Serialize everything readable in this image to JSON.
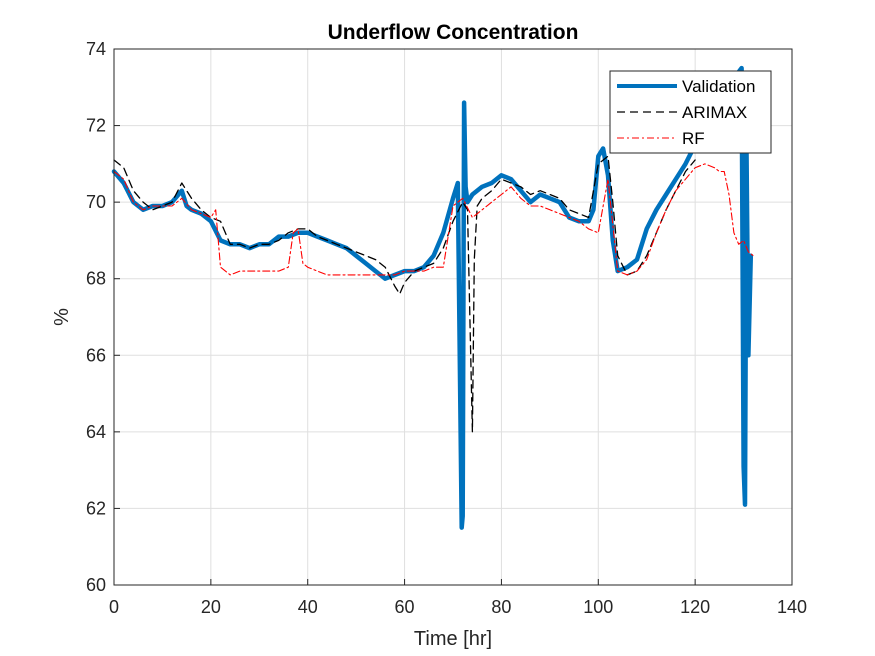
{
  "chart_data": {
    "type": "line",
    "title": "Underflow Concentration",
    "xlabel": "Time [hr]",
    "ylabel": "%",
    "xlim": [
      0,
      140
    ],
    "ylim": [
      60,
      74
    ],
    "xticks": [
      0,
      20,
      40,
      60,
      80,
      100,
      120,
      140
    ],
    "yticks": [
      60,
      62,
      64,
      66,
      68,
      70,
      72,
      74
    ],
    "grid": true,
    "legend_position": "top-right",
    "series": [
      {
        "name": "Validation",
        "color": "#0072BD",
        "style": "solid-thick",
        "x": [
          0,
          2,
          4,
          6,
          8,
          10,
          12,
          14,
          15,
          16,
          18,
          20,
          22,
          24,
          26,
          28,
          30,
          32,
          34,
          36,
          38,
          40,
          42,
          44,
          46,
          48,
          50,
          52,
          54,
          56,
          58,
          60,
          62,
          64,
          66,
          68,
          70,
          71,
          71.8,
          72,
          72.3,
          72.6,
          73,
          74,
          76,
          78,
          80,
          82,
          84,
          86,
          88,
          90,
          92,
          94,
          96,
          98,
          99,
          100,
          101,
          102,
          103,
          104,
          106,
          108,
          110,
          112,
          114,
          116,
          118,
          120,
          122,
          124,
          126,
          128,
          129,
          129.6,
          130,
          130.3,
          130.6,
          131,
          131.5
        ],
        "y": [
          70.8,
          70.5,
          70.0,
          69.8,
          69.9,
          69.9,
          70.0,
          70.3,
          69.9,
          69.8,
          69.7,
          69.5,
          69.0,
          68.9,
          68.9,
          68.8,
          68.9,
          68.9,
          69.1,
          69.1,
          69.2,
          69.2,
          69.1,
          69.0,
          68.9,
          68.8,
          68.6,
          68.4,
          68.2,
          68.0,
          68.1,
          68.2,
          68.2,
          68.3,
          68.6,
          69.2,
          70.1,
          70.5,
          61.5,
          61.8,
          72.6,
          70.4,
          70.0,
          70.2,
          70.4,
          70.5,
          70.7,
          70.6,
          70.3,
          70.0,
          70.2,
          70.1,
          70.0,
          69.6,
          69.5,
          69.5,
          69.8,
          71.2,
          71.4,
          70.7,
          69.0,
          68.2,
          68.3,
          68.5,
          69.3,
          69.8,
          70.2,
          70.6,
          71.0,
          71.5,
          72.0,
          72.6,
          73.0,
          73.3,
          73.4,
          73.5,
          63.1,
          62.1,
          71.4,
          66.0,
          68.6
        ]
      },
      {
        "name": "ARIMAX",
        "color": "#000000",
        "style": "dashed",
        "x": [
          0,
          2,
          4,
          6,
          8,
          10,
          12,
          14,
          16,
          18,
          20,
          22,
          24,
          26,
          28,
          30,
          32,
          34,
          36,
          38,
          40,
          42,
          44,
          46,
          48,
          50,
          52,
          54,
          56,
          58,
          59,
          60,
          62,
          64,
          66,
          68,
          70,
          72,
          73,
          74,
          74.4,
          75,
          76,
          78,
          80,
          82,
          84,
          86,
          88,
          90,
          92,
          94,
          96,
          98,
          100,
          102,
          103,
          104,
          106,
          108,
          110,
          112,
          114,
          116,
          118,
          120
        ],
        "y": [
          71.1,
          70.9,
          70.3,
          70.0,
          69.8,
          69.9,
          70.0,
          70.5,
          70.1,
          69.8,
          69.6,
          69.5,
          68.9,
          68.9,
          68.8,
          68.9,
          68.9,
          69.0,
          69.2,
          69.3,
          69.3,
          69.1,
          69.0,
          68.9,
          68.8,
          68.7,
          68.6,
          68.5,
          68.3,
          67.8,
          67.6,
          67.9,
          68.2,
          68.3,
          68.4,
          68.8,
          69.5,
          70.0,
          69.8,
          64.0,
          68.5,
          69.9,
          70.1,
          70.3,
          70.6,
          70.5,
          70.4,
          70.2,
          70.3,
          70.2,
          70.1,
          69.8,
          69.7,
          69.6,
          71.0,
          71.2,
          70.0,
          68.6,
          68.1,
          68.2,
          68.6,
          69.2,
          69.8,
          70.3,
          70.8,
          71.1
        ]
      },
      {
        "name": "RF",
        "color": "#FF0000",
        "style": "dashdot",
        "x": [
          0,
          2,
          4,
          6,
          8,
          10,
          12,
          14,
          16,
          18,
          20,
          21,
          22,
          23,
          24,
          26,
          28,
          30,
          32,
          34,
          36,
          37,
          38,
          39,
          40,
          42,
          44,
          46,
          48,
          50,
          52,
          54,
          56,
          58,
          60,
          62,
          64,
          66,
          68,
          70,
          72,
          74,
          76,
          78,
          80,
          82,
          84,
          86,
          88,
          90,
          92,
          94,
          96,
          98,
          100,
          102,
          104,
          106,
          108,
          110,
          112,
          114,
          116,
          118,
          120,
          122,
          124,
          125,
          126,
          127,
          128,
          129,
          130,
          131,
          132
        ],
        "y": [
          70.8,
          70.6,
          70.0,
          69.8,
          69.9,
          69.9,
          69.9,
          70.1,
          69.8,
          69.7,
          69.6,
          69.8,
          68.3,
          68.2,
          68.1,
          68.2,
          68.2,
          68.2,
          68.2,
          68.2,
          68.3,
          69.2,
          69.3,
          68.4,
          68.3,
          68.2,
          68.1,
          68.1,
          68.1,
          68.1,
          68.1,
          68.1,
          68.1,
          68.1,
          68.2,
          68.2,
          68.2,
          68.3,
          68.3,
          69.9,
          70.1,
          69.6,
          69.8,
          70.0,
          70.2,
          70.4,
          70.1,
          69.9,
          69.9,
          69.8,
          69.7,
          69.6,
          69.5,
          69.3,
          69.2,
          70.6,
          68.2,
          68.1,
          68.2,
          68.5,
          69.2,
          69.8,
          70.3,
          70.6,
          70.9,
          71.0,
          70.9,
          70.8,
          70.8,
          70.2,
          69.2,
          68.9,
          69.0,
          68.7,
          68.6
        ]
      }
    ]
  }
}
